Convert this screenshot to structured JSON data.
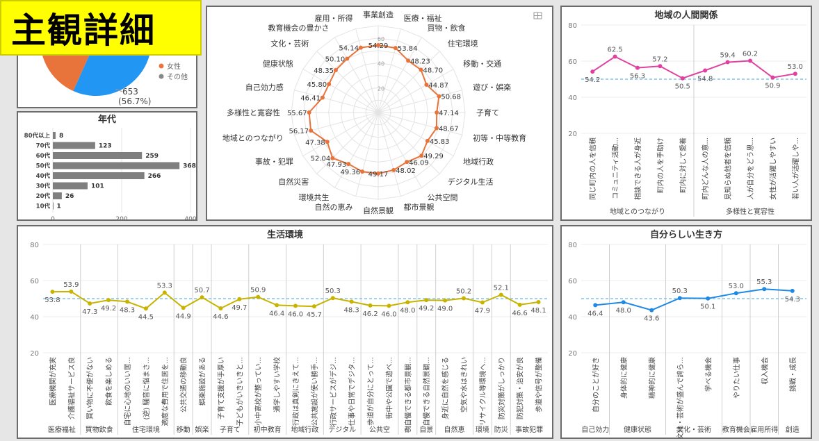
{
  "badge_label": "主観詳細",
  "chart_data": [
    {
      "id": "gender",
      "type": "pie",
      "legend": [
        "女性",
        "その他"
      ],
      "labels": [
        "653",
        "(56.7%)"
      ],
      "colors": [
        "#2196f3",
        "#e8743b"
      ]
    },
    {
      "id": "age",
      "type": "bar",
      "title": "年代",
      "categories": [
        "80代以上",
        "70代",
        "60代",
        "50代",
        "40代",
        "30代",
        "20代",
        "10代"
      ],
      "values": [
        8,
        123,
        259,
        368,
        266,
        101,
        26,
        1
      ],
      "xlim": [
        0,
        400
      ],
      "xticks": [
        "0",
        "200",
        "400"
      ],
      "color": "#7f7f7f"
    },
    {
      "id": "radar",
      "type": "radar",
      "axes": [
        "事業創造",
        "医療・福祉",
        "買物・飲食",
        "住宅環境",
        "移動・交通",
        "遊び・娯楽",
        "子育て",
        "初等・中等教育",
        "地域行政",
        "デジタル生活",
        "公共空間",
        "都市景観",
        "自然景観",
        "自然の恵み",
        "環境共生",
        "自然災害",
        "事故・犯罪",
        "地域とのつながり",
        "多様性と寛容性",
        "自己効力感",
        "健康状態",
        "文化・芸術",
        "教育機会の豊かさ",
        "雇用・所得"
      ],
      "values": [
        54.29,
        53.84,
        48.23,
        48.7,
        44.87,
        50.68,
        47.14,
        48.67,
        45.83,
        49.29,
        46.09,
        48.02,
        49.17,
        49.36,
        47.93,
        52.04,
        47.38,
        56.17,
        55.67,
        46.41,
        45.8,
        48.35,
        50.1,
        54.14
      ],
      "value_labels": [
        "54.29",
        "53.84",
        "48.23",
        "48.70",
        "44.87",
        "50.68",
        "47.14",
        "48.67",
        "45.83",
        "49.29",
        "46.09",
        "48.02",
        "49.17",
        "49.36",
        "47.93",
        "52.04",
        "47.38",
        "56.17",
        "55.67",
        "46.41",
        "45.80",
        "48.35",
        "50.10",
        "54.14"
      ],
      "rlim": [
        0,
        70
      ],
      "rticks": [
        "20",
        "40",
        "60"
      ],
      "color": "#e8743b"
    },
    {
      "id": "relations",
      "type": "line",
      "title": "地域の人間関係",
      "categories": [
        "同じ町内の人を信頼",
        "コミュニティ活動...",
        "相談できる人が身近",
        "町内の人を手助け",
        "町内に対して愛着",
        "町内どんな人の意...",
        "見知らぬ他者を信頼",
        "人が自分をどう思...",
        "女性が活躍しやすい",
        "若い人が活躍しや..."
      ],
      "values": [
        54.2,
        62.5,
        56.3,
        57.2,
        50.5,
        54.8,
        59.4,
        60.2,
        50.9,
        53.0
      ],
      "value_labels": [
        "54.2",
        "62.5",
        "56.3",
        "57.2",
        "50.5",
        "54.8",
        "59.4",
        "60.2",
        "50.9",
        "53.0"
      ],
      "groups": [
        {
          "name": "地域とのつながり",
          "count": 5
        },
        {
          "name": "多様性と寛容性",
          "count": 5
        }
      ],
      "ylim": [
        20,
        80
      ],
      "yticks": [
        "20",
        "40",
        "60",
        "80"
      ],
      "reference": 50,
      "color": "#e040a0"
    },
    {
      "id": "living",
      "type": "line",
      "title": "生活環境",
      "categories": [
        "医療機関が充実",
        "介護福祉サービス良",
        "買い物に不便がない",
        "飲食を楽しめる",
        "自宅に心地のいい居...",
        "(逆) 騒音に悩まさ...",
        "適度な費用で住居を...",
        "公共交通の移動良",
        "娯楽施設がある",
        "子育て支援が手厚い",
        "子どもがいきいきと...",
        "小中高校が整ってい...",
        "通学しやすい学校",
        "行政は真剣にきえて...",
        "公共施設が使い勝手...",
        "行政サービスがデジ...",
        "仕事や日常でデジタ...",
        "歩道が自分にとって...",
        "街中や公園で遊べ...",
        "自慢できる都市景観...",
        "自慢できる自然景観...",
        "身近に自然を感じる",
        "空気や水はきれい",
        "リサイクル等環境へ...",
        "防災対策がしっかり",
        "防犯対策・治安が良",
        "歩道や信号が整備"
      ],
      "values": [
        53.8,
        53.9,
        47.3,
        49.2,
        48.3,
        44.5,
        53.3,
        44.9,
        50.7,
        44.6,
        49.7,
        50.9,
        46.4,
        46.0,
        45.7,
        50.3,
        48.3,
        46.2,
        46.0,
        48.0,
        49.2,
        49.0,
        50.2,
        47.9,
        52.1,
        46.6,
        48.1
      ],
      "value_labels": [
        "53.8",
        "53.9",
        "47.3",
        "49.2",
        "48.3",
        "44.5",
        "53.3",
        "44.9",
        "50.7",
        "44.6",
        "49.7",
        "50.9",
        "46.4",
        "46.0",
        "45.7",
        "50.3",
        "48.3",
        "46.2",
        "46.0",
        "48.0",
        "49.2",
        "49.0",
        "50.2",
        "47.9",
        "52.1",
        "46.6",
        "48.1"
      ],
      "groups": [
        {
          "name": "医療福祉",
          "count": 2
        },
        {
          "name": "買物飲食",
          "count": 2
        },
        {
          "name": "住宅環境",
          "count": 3
        },
        {
          "name": "移動",
          "count": 1
        },
        {
          "name": "娯楽",
          "count": 1
        },
        {
          "name": "子育て",
          "count": 2
        },
        {
          "name": "初中教育",
          "count": 2
        },
        {
          "name": "地域行政",
          "count": 2
        },
        {
          "name": "デジタル",
          "count": 2
        },
        {
          "name": "公共空",
          "count": 2
        },
        {
          "name": "都",
          "count": 1
        },
        {
          "name": "自景",
          "count": 1
        },
        {
          "name": "自然恵",
          "count": 2
        },
        {
          "name": "環境",
          "count": 1
        },
        {
          "name": "防災",
          "count": 1
        },
        {
          "name": "事故犯罪",
          "count": 2
        }
      ],
      "ylim": [
        20,
        80
      ],
      "yticks": [
        "20",
        "40",
        "60",
        "80"
      ],
      "reference": 50,
      "color": "#c8b400"
    },
    {
      "id": "selfway",
      "type": "line",
      "title": "自分らしい生き方",
      "categories": [
        "自分のことが好き",
        "身体的に健康",
        "精神的に健康",
        "文化・芸術が盛んで誇ら...",
        "学べる機会",
        "やりたい仕事",
        "収入機会",
        "挑戦・成長"
      ],
      "values": [
        46.4,
        48.0,
        43.6,
        50.3,
        50.1,
        53.0,
        55.3,
        54.3
      ],
      "value_labels": [
        "46.4",
        "48.0",
        "43.6",
        "50.3",
        "50.1",
        "53.0",
        "55.3",
        "54.3"
      ],
      "groups": [
        {
          "name": "自己効力",
          "count": 1
        },
        {
          "name": "健康状態",
          "count": 2
        },
        {
          "name": "文化・芸術",
          "count": 2
        },
        {
          "name": "教育機会",
          "count": 1
        },
        {
          "name": "雇用所得",
          "count": 1
        },
        {
          "name": "創造",
          "count": 1
        }
      ],
      "ylim": [
        20,
        80
      ],
      "yticks": [
        "20",
        "40",
        "60",
        "80"
      ],
      "reference": 50,
      "color": "#1e88e5"
    }
  ]
}
